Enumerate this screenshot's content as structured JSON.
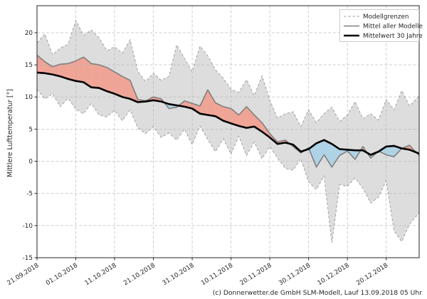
{
  "caption": "(c) Donnerwetter.de GmbH SLM-Modell, Lauf 13.09.2018 05 Uhr",
  "colors": {
    "background": "#ffffff",
    "band_fill": "#dddddd",
    "band_edge": "#a0a0a0",
    "warm_fill": "#efa496",
    "cold_fill": "#aed3e6",
    "model_mean_line": "#7f7f7f",
    "climate_mean_line": "#000000",
    "grid": "#b5b5b5",
    "frame": "#262626",
    "legend_border": "#cccccc"
  },
  "chart_data": {
    "type": "line",
    "title": "",
    "xlabel": "",
    "ylabel": "Mittlere Lufttemperatur [°]",
    "grid": true,
    "legend_position": "top-right",
    "legend": [
      "Modellgrenzen",
      "Mittel aller Modelle",
      "Mittelwert 30 Jahre"
    ],
    "x_tick_labels": [
      "21.09.2018",
      "01.10.2018",
      "11.10.2018",
      "21.10.2018",
      "31.10.2018",
      "10.11.2018",
      "20.11.2018",
      "30.11.2018",
      "10.12.2018",
      "20.12.2018"
    ],
    "x_tick_days": [
      0,
      10,
      20,
      30,
      40,
      50,
      60,
      70,
      80,
      90
    ],
    "y_ticks": [
      20,
      15,
      10,
      5,
      0,
      -5,
      -10,
      -15
    ],
    "xlim": [
      0,
      98.5
    ],
    "ylim": [
      -15,
      24.2
    ],
    "x_days": [
      0,
      2,
      4,
      6,
      8,
      10,
      12,
      14,
      16,
      18,
      20,
      22,
      24,
      26,
      28,
      30,
      32,
      34,
      36,
      38,
      40,
      42,
      44,
      46,
      48,
      50,
      52,
      54,
      56,
      58,
      60,
      62,
      64,
      66,
      68,
      70,
      72,
      74,
      76,
      78,
      80,
      82,
      84,
      86,
      88,
      90,
      92,
      94,
      96,
      98.5
    ],
    "series": [
      {
        "name": "Modellgrenze oben",
        "role": "band_upper",
        "values": [
          18.4,
          19.8,
          16.6,
          17.6,
          18.2,
          21.9,
          19.6,
          20.4,
          19.2,
          17.2,
          17.8,
          16.8,
          18.9,
          14.0,
          12.4,
          13.7,
          12.6,
          13.2,
          18.1,
          16.0,
          13.9,
          17.9,
          16.4,
          14.2,
          12.9,
          11.2,
          10.7,
          12.7,
          10.2,
          13.3,
          9.5,
          6.7,
          7.4,
          7.7,
          5.4,
          8.0,
          6.0,
          7.4,
          8.4,
          6.2,
          7.2,
          9.3,
          6.6,
          7.4,
          6.4,
          9.6,
          8.0,
          11.0,
          8.6,
          10.2
        ]
      },
      {
        "name": "Modellgrenze unten",
        "role": "band_lower",
        "values": [
          11.2,
          9.7,
          10.5,
          8.5,
          9.8,
          8.1,
          7.4,
          9.0,
          7.2,
          6.9,
          7.9,
          6.3,
          8.0,
          5.2,
          4.3,
          5.4,
          3.7,
          4.4,
          3.3,
          5.0,
          2.6,
          5.5,
          3.4,
          1.5,
          3.5,
          1.1,
          3.9,
          0.9,
          3.0,
          0.4,
          2.3,
          0.5,
          -1.1,
          -1.4,
          0.4,
          -3.2,
          -4.4,
          -2.3,
          -12.7,
          -3.6,
          -3.9,
          -2.6,
          -4.2,
          -6.5,
          -5.6,
          -3.0,
          -10.8,
          -12.5,
          -9.8,
          -8.0
        ]
      },
      {
        "name": "Mittel aller Modelle",
        "role": "model_mean",
        "values": [
          16.5,
          15.5,
          14.7,
          15.1,
          15.2,
          15.6,
          16.2,
          15.2,
          15.0,
          14.6,
          13.9,
          13.2,
          12.6,
          9.6,
          9.4,
          10.0,
          9.7,
          8.2,
          8.4,
          9.4,
          9.0,
          8.6,
          11.1,
          9.1,
          8.5,
          8.2,
          7.2,
          8.5,
          7.2,
          6.0,
          4.3,
          3.0,
          3.3,
          2.3,
          1.3,
          2.1,
          -0.9,
          1.0,
          -0.9,
          0.9,
          1.6,
          0.3,
          2.3,
          0.5,
          1.6,
          1.0,
          0.7,
          2.0,
          2.5,
          0.9
        ]
      },
      {
        "name": "Mittelwert 30 Jahre",
        "role": "climate_mean",
        "values": [
          13.8,
          13.7,
          13.5,
          13.2,
          12.8,
          12.5,
          12.3,
          11.5,
          11.4,
          10.9,
          10.5,
          10.0,
          9.7,
          9.2,
          9.3,
          9.5,
          9.3,
          8.9,
          8.7,
          8.5,
          8.2,
          7.4,
          7.2,
          7.0,
          6.3,
          5.9,
          5.5,
          5.2,
          5.4,
          4.6,
          3.7,
          2.7,
          2.9,
          2.6,
          1.5,
          1.9,
          2.8,
          3.3,
          2.7,
          1.9,
          1.8,
          1.7,
          1.7,
          1.0,
          1.5,
          2.3,
          2.4,
          2.0,
          1.8,
          1.2
        ]
      }
    ]
  }
}
